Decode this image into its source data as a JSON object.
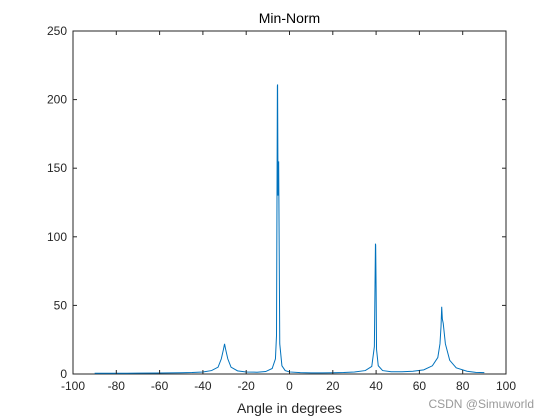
{
  "chart_data": {
    "type": "line",
    "title": "Min-Norm",
    "xlabel": "Angle in degrees",
    "ylabel": "",
    "xlim": [
      -100,
      100
    ],
    "ylim": [
      0,
      250
    ],
    "xticks": [
      -100,
      -80,
      -60,
      -40,
      -20,
      0,
      20,
      40,
      60,
      80,
      100
    ],
    "yticks": [
      0,
      50,
      100,
      150,
      200,
      250
    ],
    "grid": false,
    "line_color": "#0072BD",
    "series": [
      {
        "x": [
          -90,
          -80,
          -70,
          -60,
          -50,
          -45,
          -40,
          -36,
          -33,
          -31.5,
          -30.5,
          -30,
          -29.5,
          -28.5,
          -27,
          -24,
          -20,
          -15,
          -11,
          -8,
          -6.5,
          -6,
          -5.6,
          -5.5,
          -5.3,
          -5,
          -4.5,
          -3.5,
          -2,
          0,
          5,
          10,
          15,
          20,
          25,
          30,
          35,
          38,
          39.2,
          39.7,
          39.8,
          40,
          40.2,
          41,
          43,
          47,
          52,
          57,
          62,
          66,
          68.5,
          69.5,
          70,
          70.3,
          70.6,
          71,
          72,
          74,
          77,
          82,
          86,
          90
        ],
        "y": [
          0.5,
          0.5,
          0.6,
          0.7,
          0.9,
          1.1,
          1.5,
          2.5,
          5,
          11,
          18,
          22,
          18,
          11,
          5,
          2.3,
          1.5,
          1.3,
          1.8,
          4,
          11,
          28,
          210,
          211,
          130,
          155,
          22,
          6,
          2.5,
          1.5,
          1,
          0.8,
          0.8,
          0.9,
          1.1,
          1.5,
          2.5,
          5.5,
          20,
          95,
          94,
          63,
          18,
          6,
          2.5,
          1.6,
          1.6,
          2,
          3,
          6,
          12,
          22,
          35,
          49,
          40,
          37,
          22,
          10,
          4.5,
          2,
          1.2,
          1
        ]
      }
    ]
  },
  "watermark": "CSDN @Simuworld"
}
